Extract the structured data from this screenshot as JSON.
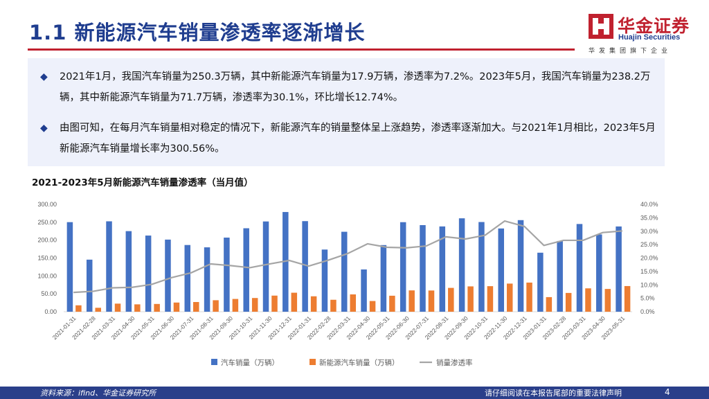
{
  "header": {
    "title": "1.1 新能源汽车销量渗透率逐渐增长",
    "logo_cn": "华金证券",
    "logo_en": "Huajin Securities",
    "logo_sub": "华发集团旗下企业"
  },
  "summary": {
    "bullet1": "2021年1月，我国汽车销量为250.3万辆，其中新能源汽车销量为17.9万辆，渗透率为7.2%。2023年5月，我国汽车销量为238.2万辆，其中新能源汽车销量为71.7万辆，渗透率为30.1%，环比增长12.74%。",
    "bullet2": "由图可知，在每月汽车销量相对稳定的情况下，新能源汽车的销量整体呈上涨趋势，渗透率逐渐加大。与2021年1月相比，2023年5月新能源汽车销量增长率为300.56%。"
  },
  "chart_data": {
    "type": "bar",
    "title": "2021-2023年5月新能源汽车销量渗透率（当月值）",
    "categories": [
      "2021-01-31",
      "2021-02-28",
      "2021-03-31",
      "2021-04-30",
      "2021-05-31",
      "2021-06-30",
      "2021-07-31",
      "2021-08-31",
      "2021-09-30",
      "2021-10-31",
      "2021-11-30",
      "2021-12-31",
      "2022-01-31",
      "2022-02-28",
      "2022-03-31",
      "2022-04-30",
      "2022-05-31",
      "2022-06-30",
      "2022-07-31",
      "2022-08-31",
      "2022-09-30",
      "2022-10-31",
      "2022-11-30",
      "2022-12-31",
      "2023-01-31",
      "2023-02-28",
      "2023-03-31",
      "2023-04-30",
      "2023-05-31"
    ],
    "series": [
      {
        "name": "汽车销量（万辆）",
        "axis": "left",
        "kind": "bar",
        "color": "#4472c4",
        "values": [
          250.3,
          145.5,
          252.6,
          225.2,
          212.8,
          201.5,
          186.4,
          179.9,
          207.1,
          233.2,
          252.2,
          278.6,
          253.1,
          173.7,
          223.4,
          118.1,
          186.2,
          250.2,
          242.0,
          238.3,
          261.0,
          250.6,
          232.6,
          255.9,
          164.9,
          197.6,
          245.1,
          215.9,
          238.2
        ]
      },
      {
        "name": "新能源汽车销量（万辆）",
        "axis": "left",
        "kind": "bar",
        "color": "#ed7d31",
        "values": [
          17.9,
          11.0,
          22.6,
          20.6,
          21.7,
          25.6,
          27.1,
          32.1,
          35.7,
          38.3,
          45.0,
          53.1,
          43.1,
          33.4,
          48.4,
          29.9,
          44.7,
          59.6,
          59.3,
          66.6,
          70.8,
          71.4,
          78.6,
          81.4,
          40.8,
          52.5,
          65.3,
          63.6,
          71.7
        ]
      },
      {
        "name": "销量渗透率",
        "axis": "right",
        "kind": "line",
        "color": "#a5a5a5",
        "values": [
          7.2,
          7.6,
          8.9,
          9.1,
          10.2,
          12.7,
          14.5,
          17.8,
          17.2,
          16.4,
          17.8,
          19.1,
          17.0,
          19.2,
          21.7,
          25.3,
          24.0,
          23.8,
          24.5,
          27.9,
          27.1,
          28.5,
          33.8,
          31.8,
          24.7,
          26.6,
          26.6,
          29.5,
          30.1
        ]
      }
    ],
    "y_left": {
      "min": 0,
      "max": 300,
      "ticks": [
        "0.00",
        "50.00",
        "100.00",
        "150.00",
        "200.00",
        "250.00",
        "300.00"
      ]
    },
    "y_right": {
      "min": 0,
      "max": 40,
      "ticks": [
        "0.0%",
        "5.0%",
        "10.0%",
        "15.0%",
        "20.0%",
        "25.0%",
        "30.0%",
        "35.0%",
        "40.0%"
      ]
    },
    "legend": "bottom",
    "grid": false
  },
  "footer": {
    "source": "资料来源：ifind、华金证券研究所",
    "legal": "请仔细阅读在本报告尾部的重要法律声明",
    "page": "4"
  }
}
